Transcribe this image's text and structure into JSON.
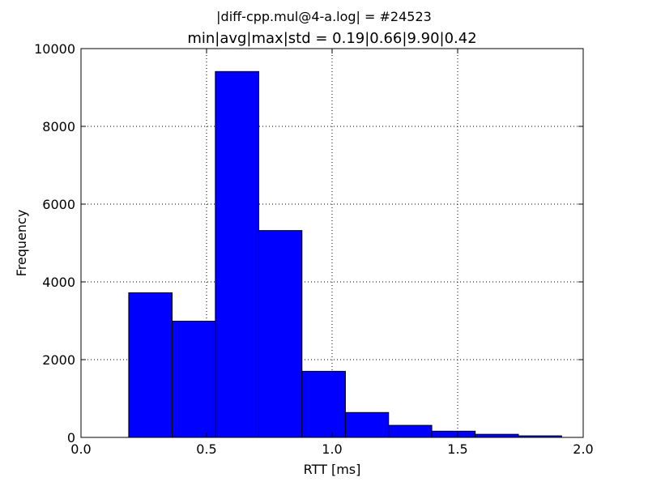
{
  "chart_data": {
    "type": "bar",
    "suptitle": "|diff-cpp.mul@4-a.log| = #24523",
    "title": "min|avg|max|std = 0.19|0.66|9.90|0.42",
    "xlabel": "RTT [ms]",
    "ylabel": "Frequency",
    "xlim": [
      0.0,
      2.0
    ],
    "ylim": [
      0,
      10000
    ],
    "xticks": [
      0.0,
      0.5,
      1.0,
      1.5,
      2.0
    ],
    "xtick_labels": [
      "0.0",
      "0.5",
      "1.0",
      "1.5",
      "2.0"
    ],
    "yticks": [
      0,
      2000,
      4000,
      6000,
      8000,
      10000
    ],
    "ytick_labels": [
      "0",
      "2000",
      "4000",
      "6000",
      "8000",
      "10000"
    ],
    "grid": true,
    "bar_color": "#0000ff",
    "bins": [
      {
        "x0": 0.19,
        "x1": 0.363,
        "count": 3720
      },
      {
        "x0": 0.363,
        "x1": 0.535,
        "count": 2990
      },
      {
        "x0": 0.535,
        "x1": 0.708,
        "count": 9410
      },
      {
        "x0": 0.708,
        "x1": 0.88,
        "count": 5320
      },
      {
        "x0": 0.88,
        "x1": 1.053,
        "count": 1700
      },
      {
        "x0": 1.053,
        "x1": 1.225,
        "count": 640
      },
      {
        "x0": 1.225,
        "x1": 1.397,
        "count": 310
      },
      {
        "x0": 1.397,
        "x1": 1.57,
        "count": 160
      },
      {
        "x0": 1.57,
        "x1": 1.742,
        "count": 80
      },
      {
        "x0": 1.742,
        "x1": 1.914,
        "count": 40
      }
    ]
  }
}
